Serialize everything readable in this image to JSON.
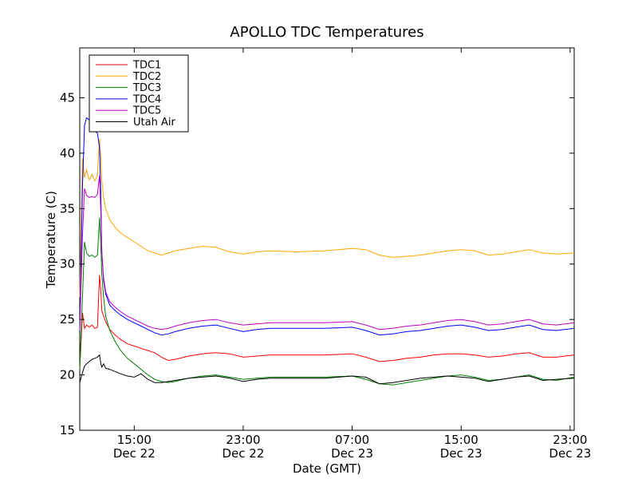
{
  "chart_data": {
    "type": "line",
    "title": "APOLLO TDC Temperatures",
    "xlabel": "Date (GMT)",
    "ylabel": "Temperature (C)",
    "xlim": [
      11.0,
      47.3
    ],
    "ylim": [
      15,
      49.5
    ],
    "grid": false,
    "legend_position": "top-left",
    "x_units": "hours since Dec 22 00:00 GMT",
    "x_ticks": [
      {
        "value": 15,
        "time": "15:00",
        "date": "Dec 22"
      },
      {
        "value": 23,
        "time": "23:00",
        "date": "Dec 22"
      },
      {
        "value": 31,
        "time": "07:00",
        "date": "Dec 23"
      },
      {
        "value": 39,
        "time": "15:00",
        "date": "Dec 23"
      },
      {
        "value": 47,
        "time": "23:00",
        "date": "Dec 23"
      }
    ],
    "y_ticks": [
      15,
      20,
      25,
      30,
      35,
      40,
      45
    ],
    "series": [
      {
        "name": "TDC1",
        "color": "#ff0000",
        "x": [
          11.0,
          11.2,
          11.35,
          11.5,
          11.7,
          11.9,
          12.1,
          12.3,
          12.45,
          12.55,
          12.62,
          12.75,
          12.9,
          13.2,
          13.6,
          14.0,
          14.5,
          15.0,
          15.5,
          16.0,
          16.5,
          17.0,
          17.5,
          18.0,
          19.0,
          20.0,
          21.0,
          22.0,
          23.0,
          24.0,
          25.0,
          27.0,
          29.0,
          31.0,
          32.0,
          33.0,
          34.0,
          35.0,
          36.0,
          37.0,
          38.0,
          39.0,
          40.0,
          41.0,
          42.0,
          43.0,
          44.0,
          45.0,
          46.0,
          47.3
        ],
        "y": [
          20.5,
          25.6,
          24.2,
          24.5,
          24.3,
          24.5,
          24.2,
          24.3,
          29.0,
          27.5,
          25.8,
          25.3,
          24.8,
          24.1,
          23.6,
          23.2,
          22.8,
          22.6,
          22.4,
          22.2,
          22.0,
          21.6,
          21.3,
          21.4,
          21.7,
          21.9,
          22.0,
          21.9,
          21.6,
          21.7,
          21.8,
          21.8,
          21.8,
          21.9,
          21.6,
          21.2,
          21.3,
          21.5,
          21.6,
          21.8,
          21.9,
          21.9,
          21.8,
          21.6,
          21.7,
          21.9,
          22.0,
          21.6,
          21.6,
          21.8
        ]
      },
      {
        "name": "TDC2",
        "color": "#ffa500",
        "x": [
          11.0,
          11.2,
          11.35,
          11.5,
          11.7,
          11.9,
          12.1,
          12.3,
          12.45,
          12.55,
          12.62,
          12.75,
          12.9,
          13.2,
          13.6,
          14.0,
          14.5,
          15.0,
          15.5,
          16.0,
          16.5,
          17.0,
          17.5,
          18.0,
          19.0,
          20.0,
          21.0,
          22.0,
          23.0,
          24.0,
          25.0,
          27.0,
          29.0,
          31.0,
          32.0,
          33.0,
          34.0,
          35.0,
          36.0,
          37.0,
          38.0,
          39.0,
          40.0,
          41.0,
          42.0,
          43.0,
          44.0,
          45.0,
          46.0,
          47.3
        ],
        "y": [
          27.0,
          39.5,
          37.8,
          38.5,
          37.6,
          38.1,
          37.5,
          38.0,
          41.3,
          39.5,
          37.5,
          36.0,
          35.0,
          34.0,
          33.3,
          32.8,
          32.4,
          32.0,
          31.6,
          31.2,
          31.0,
          30.8,
          31.0,
          31.2,
          31.4,
          31.6,
          31.5,
          31.1,
          30.9,
          31.1,
          31.2,
          31.1,
          31.2,
          31.4,
          31.3,
          30.8,
          30.6,
          30.7,
          30.8,
          31.0,
          31.2,
          31.3,
          31.2,
          30.8,
          30.9,
          31.1,
          31.3,
          31.0,
          30.9,
          31.0
        ]
      },
      {
        "name": "TDC3",
        "color": "#008000",
        "x": [
          11.0,
          11.2,
          11.35,
          11.5,
          11.7,
          11.9,
          12.1,
          12.3,
          12.45,
          12.55,
          12.62,
          12.75,
          12.9,
          13.2,
          13.6,
          14.0,
          14.5,
          15.0,
          15.5,
          16.0,
          16.5,
          17.0,
          17.5,
          18.0,
          19.0,
          20.0,
          21.0,
          22.0,
          23.0,
          24.0,
          25.0,
          27.0,
          29.0,
          31.0,
          32.0,
          33.0,
          34.0,
          35.0,
          36.0,
          37.0,
          38.0,
          39.0,
          40.0,
          41.0,
          42.0,
          43.0,
          44.0,
          45.0,
          46.0,
          47.3
        ],
        "y": [
          20.5,
          27.0,
          32.0,
          31.0,
          30.7,
          30.8,
          30.6,
          30.8,
          34.2,
          31.5,
          29.0,
          27.0,
          25.3,
          24.0,
          23.0,
          22.2,
          21.5,
          21.0,
          20.5,
          20.0,
          19.6,
          19.4,
          19.3,
          19.4,
          19.7,
          19.9,
          20.0,
          19.8,
          19.6,
          19.7,
          19.8,
          19.8,
          19.8,
          19.9,
          19.6,
          19.2,
          19.1,
          19.3,
          19.5,
          19.7,
          19.9,
          20.0,
          19.8,
          19.5,
          19.6,
          19.8,
          20.0,
          19.6,
          19.5,
          19.8
        ]
      },
      {
        "name": "TDC4",
        "color": "#0000ff",
        "x": [
          11.0,
          11.2,
          11.35,
          11.5,
          11.7,
          11.9,
          12.1,
          12.3,
          12.45,
          12.55,
          12.62,
          12.75,
          12.9,
          13.2,
          13.6,
          14.0,
          14.5,
          15.0,
          15.5,
          16.0,
          16.5,
          17.0,
          17.5,
          18.0,
          19.0,
          20.0,
          21.0,
          22.0,
          23.0,
          24.0,
          25.0,
          27.0,
          29.0,
          31.0,
          32.0,
          33.0,
          34.0,
          35.0,
          36.0,
          37.0,
          38.0,
          39.0,
          40.0,
          41.0,
          42.0,
          43.0,
          44.0,
          45.0,
          46.0,
          47.3
        ],
        "y": [
          24.0,
          37.0,
          42.5,
          43.2,
          43.0,
          42.5,
          42.0,
          41.8,
          40.5,
          36.0,
          31.0,
          28.5,
          27.3,
          26.3,
          25.8,
          25.4,
          25.0,
          24.7,
          24.4,
          24.1,
          23.8,
          23.6,
          23.7,
          23.9,
          24.2,
          24.4,
          24.5,
          24.2,
          23.9,
          24.1,
          24.2,
          24.2,
          24.2,
          24.3,
          24.0,
          23.6,
          23.7,
          23.9,
          24.0,
          24.2,
          24.4,
          24.5,
          24.3,
          24.0,
          24.1,
          24.3,
          24.5,
          24.1,
          24.0,
          24.2
        ]
      },
      {
        "name": "TDC5",
        "color": "#c000c0",
        "x": [
          11.0,
          11.2,
          11.35,
          11.5,
          11.7,
          11.9,
          12.1,
          12.3,
          12.45,
          12.55,
          12.62,
          12.75,
          12.9,
          13.2,
          13.6,
          14.0,
          14.5,
          15.0,
          15.5,
          16.0,
          16.5,
          17.0,
          17.5,
          18.0,
          19.0,
          20.0,
          21.0,
          22.0,
          23.0,
          24.0,
          25.0,
          27.0,
          29.0,
          31.0,
          32.0,
          33.0,
          34.0,
          35.0,
          36.0,
          37.0,
          38.0,
          39.0,
          40.0,
          41.0,
          42.0,
          43.0,
          44.0,
          45.0,
          46.0,
          47.3
        ],
        "y": [
          24.0,
          32.5,
          36.8,
          36.2,
          36.0,
          36.1,
          36.0,
          36.3,
          38.0,
          34.5,
          31.0,
          28.8,
          27.5,
          26.6,
          26.1,
          25.7,
          25.3,
          25.0,
          24.7,
          24.4,
          24.2,
          24.1,
          24.2,
          24.4,
          24.7,
          24.9,
          25.0,
          24.7,
          24.5,
          24.6,
          24.7,
          24.7,
          24.7,
          24.8,
          24.5,
          24.1,
          24.2,
          24.4,
          24.5,
          24.7,
          24.9,
          25.0,
          24.8,
          24.5,
          24.6,
          24.8,
          25.0,
          24.6,
          24.5,
          24.7
        ]
      },
      {
        "name": "Utah Air",
        "color": "#000000",
        "x": [
          11.0,
          11.2,
          11.35,
          11.5,
          11.7,
          11.9,
          12.1,
          12.3,
          12.45,
          12.55,
          12.62,
          12.75,
          12.9,
          13.2,
          13.6,
          14.0,
          14.5,
          15.0,
          15.5,
          16.0,
          16.5,
          17.0,
          17.5,
          18.0,
          19.0,
          20.0,
          21.0,
          22.0,
          23.0,
          24.0,
          25.0,
          27.0,
          29.0,
          31.0,
          32.0,
          33.0,
          34.0,
          35.0,
          36.0,
          37.0,
          38.0,
          39.0,
          40.0,
          41.0,
          42.0,
          43.0,
          44.0,
          45.0,
          46.0,
          47.3
        ],
        "y": [
          19.3,
          20.2,
          20.8,
          21.0,
          21.2,
          21.4,
          21.5,
          21.6,
          21.8,
          21.0,
          20.7,
          21.0,
          20.6,
          20.5,
          20.3,
          20.1,
          19.9,
          19.8,
          20.1,
          19.6,
          19.3,
          19.3,
          19.4,
          19.5,
          19.7,
          19.8,
          19.9,
          19.7,
          19.4,
          19.6,
          19.7,
          19.7,
          19.7,
          19.9,
          19.8,
          19.2,
          19.3,
          19.5,
          19.7,
          19.8,
          19.9,
          19.8,
          19.7,
          19.4,
          19.6,
          19.8,
          19.9,
          19.5,
          19.6,
          19.7
        ]
      }
    ]
  }
}
